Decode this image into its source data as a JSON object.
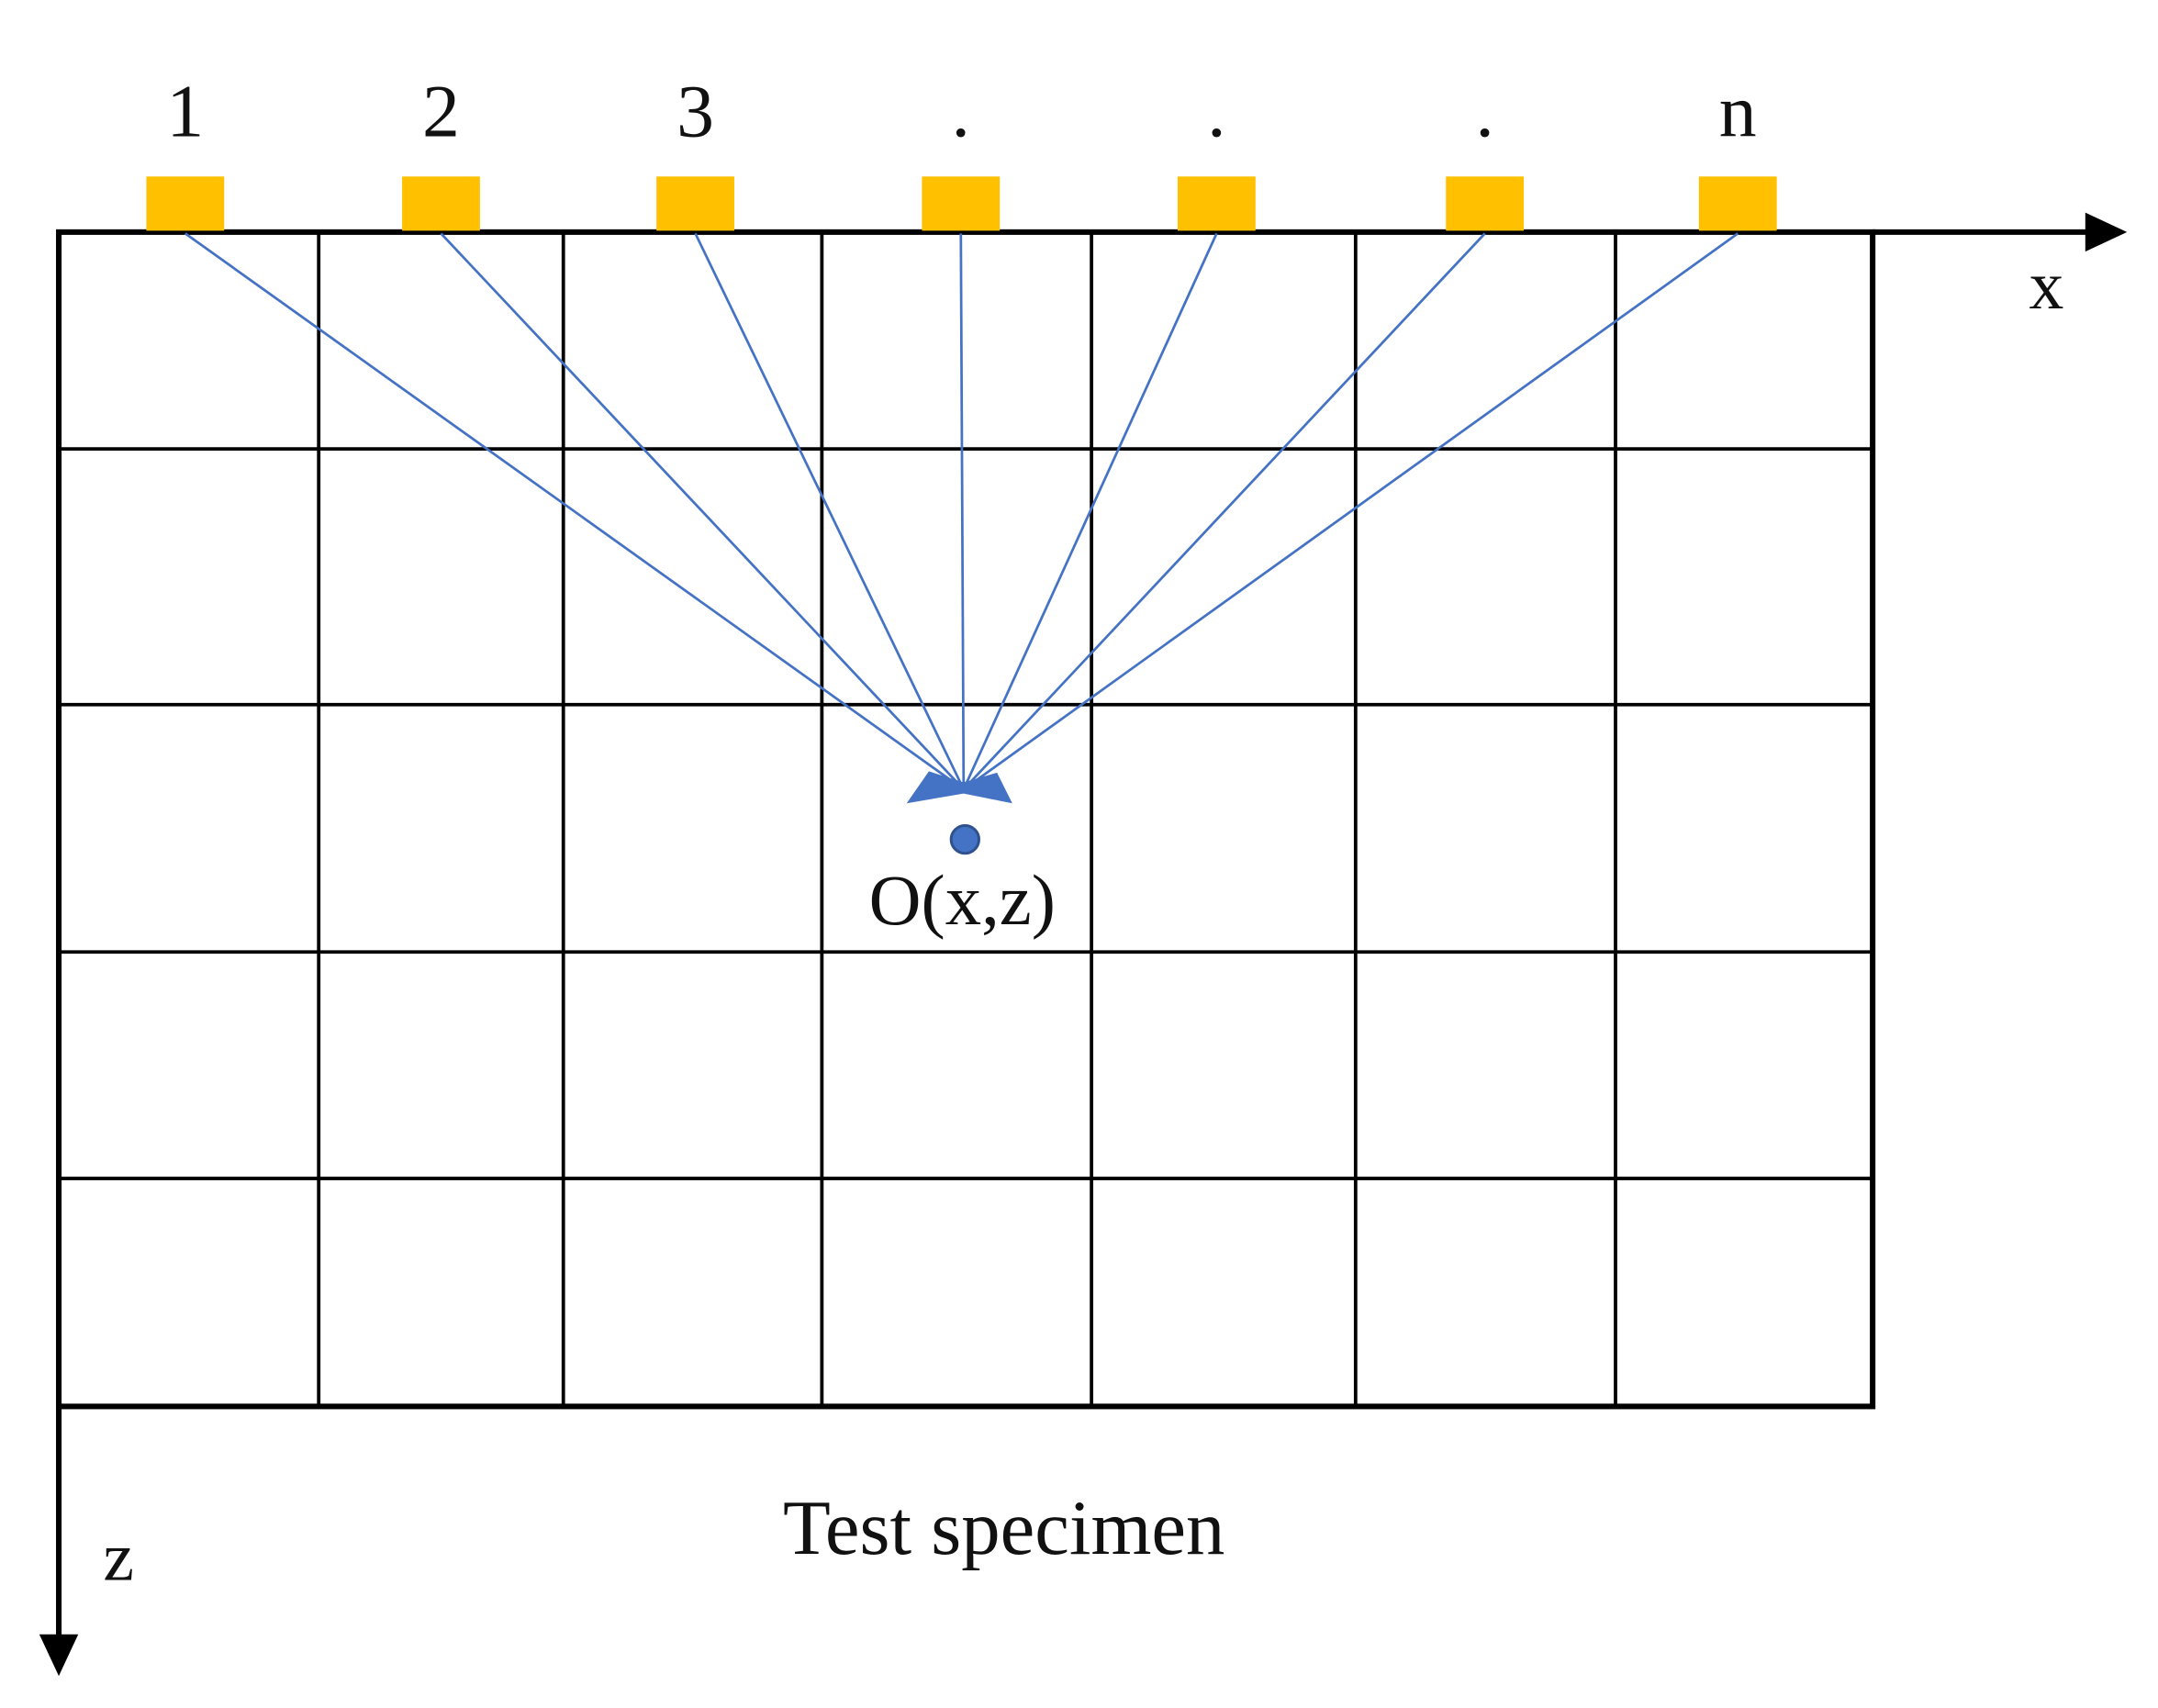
{
  "sensors": [
    {
      "label": "1"
    },
    {
      "label": "2"
    },
    {
      "label": "3"
    },
    {
      "label": "."
    },
    {
      "label": "."
    },
    {
      "label": "."
    },
    {
      "label": "n"
    }
  ],
  "axes": {
    "x": "x",
    "z": "z"
  },
  "target": {
    "label": "O(x,z)"
  },
  "caption": "Test specimen"
}
